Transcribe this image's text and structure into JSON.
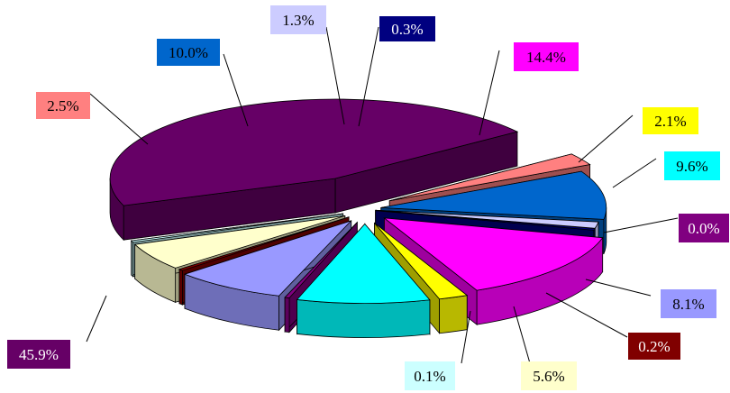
{
  "chart_data": {
    "type": "pie",
    "variant": "3d-exploded",
    "title": "",
    "values": [
      45.9,
      2.5,
      10.0,
      1.3,
      0.3,
      14.4,
      2.1,
      9.6,
      0.0,
      8.1,
      0.2,
      5.6,
      0.1
    ],
    "labels": [
      "45.9%",
      "2.5%",
      "10.0%",
      "1.3%",
      "0.3%",
      "14.4%",
      "2.1%",
      "9.6%",
      "0.0%",
      "8.1%",
      "0.2%",
      "5.6%",
      "0.1%"
    ],
    "colors": [
      "#660066",
      "#ff8080",
      "#0066cc",
      "#ccccff",
      "#000080",
      "#ff00ff",
      "#ffff00",
      "#00ffff",
      "#800080",
      "#9999ff",
      "#800000",
      "#ffffcc",
      "#ccffff"
    ],
    "label_text_colors": [
      "#ffffff",
      "#000000",
      "#000000",
      "#000000",
      "#ffffff",
      "#000000",
      "#000000",
      "#000000",
      "#ffffff",
      "#000000",
      "#ffffff",
      "#000000",
      "#000000"
    ],
    "legend": "none"
  }
}
